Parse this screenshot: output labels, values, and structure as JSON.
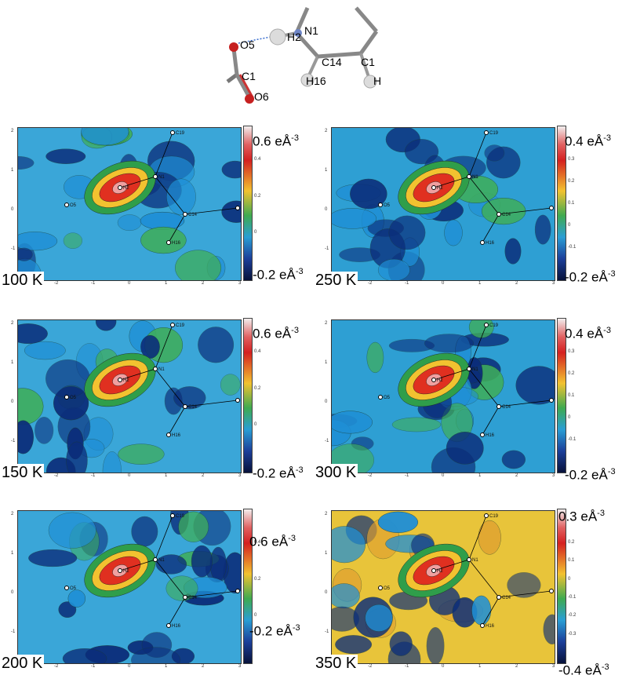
{
  "molecule": {
    "atoms": [
      {
        "id": "o5",
        "label": "O5"
      },
      {
        "id": "h2",
        "label": "H2"
      },
      {
        "id": "n1",
        "label": "N1"
      },
      {
        "id": "c14",
        "label": "C14"
      },
      {
        "id": "c1x",
        "label": "C1"
      },
      {
        "id": "h16",
        "label": "H16"
      },
      {
        "id": "c1",
        "label": "C1"
      },
      {
        "id": "o6",
        "label": "O6"
      },
      {
        "id": "h",
        "label": "H"
      }
    ]
  },
  "colorbar_ticks": [
    "-0.2",
    "-0.1",
    "0",
    "0.1",
    "0.2",
    "0.3",
    "0.4"
  ],
  "axis": {
    "x_ticks": [
      "-3",
      "-2",
      "-1",
      "0",
      "1",
      "2",
      "3"
    ],
    "y_ticks": [
      "2",
      "1",
      "0",
      "-1"
    ]
  },
  "panels": [
    {
      "id": "p100",
      "temperature": "100 K",
      "max_value": "0.6",
      "min_value": "-0.2",
      "unit": "eÅ",
      "exponent": "-3",
      "bar_ticks": [
        "0.4",
        "0.2",
        "0"
      ],
      "atoms": [
        "O5",
        "H2",
        "N1",
        "C19",
        "C14",
        "C15",
        "H16"
      ]
    },
    {
      "id": "p250",
      "temperature": "250 K",
      "max_value": "0.4",
      "min_value": "-0.2",
      "unit": "eÅ",
      "exponent": "-3",
      "bar_ticks": [
        "0.3",
        "0.2",
        "0.1",
        "0",
        "-0.1"
      ],
      "atoms": [
        "O5",
        "H2",
        "N1",
        "C19",
        "C14",
        "C15",
        "H16"
      ]
    },
    {
      "id": "p150",
      "temperature": "150 K",
      "max_value": "0.6",
      "min_value": "-0.2",
      "unit": "eÅ",
      "exponent": "-3",
      "bar_ticks": [
        "0.4",
        "0.2",
        "0"
      ],
      "atoms": [
        "O5",
        "H2",
        "N1",
        "C19",
        "C14",
        "C15",
        "H16"
      ]
    },
    {
      "id": "p300",
      "temperature": "300 K",
      "max_value": "0.4",
      "min_value": "-0.2",
      "unit": "eÅ",
      "exponent": "-3",
      "bar_ticks": [
        "0.3",
        "0.2",
        "0.1",
        "0",
        "-0.1"
      ],
      "atoms": [
        "O5",
        "H2",
        "N1",
        "C19",
        "C14",
        "C15",
        "H16"
      ]
    },
    {
      "id": "p200",
      "temperature": "200 K",
      "max_value": "0.6",
      "min_value": "-0.2",
      "unit": "eÅ",
      "exponent": "-3",
      "bar_ticks": [
        "0.4",
        "0.2",
        "0"
      ],
      "atoms": [
        "O5",
        "H2",
        "N1",
        "C19",
        "C14",
        "C15",
        "H16"
      ]
    },
    {
      "id": "p350",
      "temperature": "350 K",
      "max_value": "0.3",
      "min_value": "-0.4",
      "unit": "eÅ",
      "exponent": "-3",
      "bar_ticks": [
        "0.2",
        "0.1",
        "0",
        "-0.1",
        "-0.2",
        "-0.3"
      ],
      "atoms": [
        "O5",
        "H2",
        "N1",
        "C19",
        "C14",
        "C15",
        "H16"
      ]
    }
  ]
}
